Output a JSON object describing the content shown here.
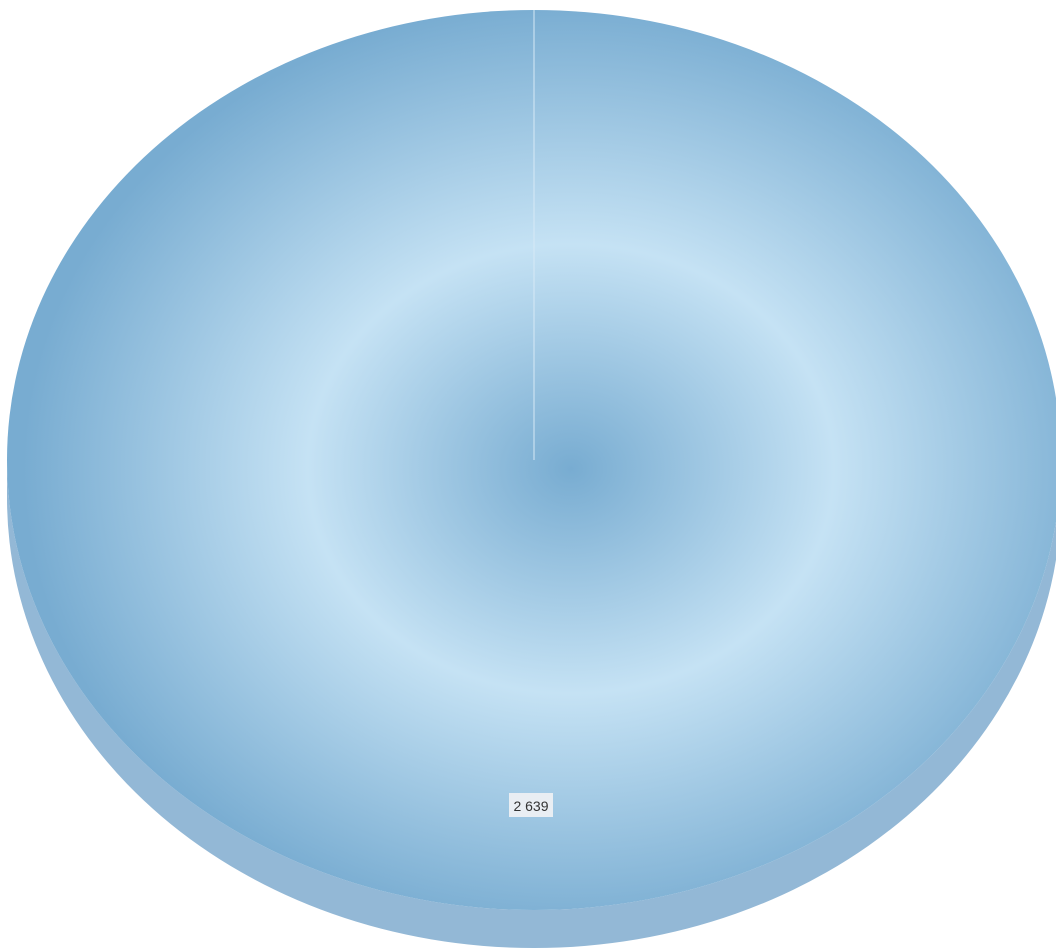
{
  "chart_data": {
    "type": "pie",
    "style": "3d",
    "series": [
      {
        "values": [
          2639
        ],
        "labels": [
          "2 639"
        ]
      }
    ],
    "colors": {
      "slice": "#8fbfde",
      "slice_highlight": "#c5e2f4",
      "slice_shade": "#78acd1",
      "side": "#93b8d6",
      "label_background": "#e9eef3"
    },
    "legend": "none",
    "grid": false
  }
}
